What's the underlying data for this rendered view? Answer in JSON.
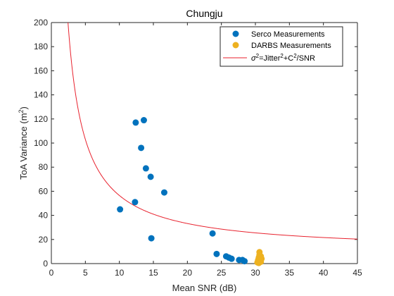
{
  "chart_data": {
    "type": "scatter",
    "title": "Chungju",
    "xlabel": "Mean SNR (dB)",
    "ylabel": "ToA Variance (m²)",
    "xlim": [
      0,
      45
    ],
    "ylim": [
      0,
      200
    ],
    "xticks": [
      0,
      5,
      10,
      15,
      20,
      25,
      30,
      35,
      40,
      45
    ],
    "yticks": [
      0,
      20,
      40,
      60,
      80,
      100,
      120,
      140,
      160,
      180,
      200
    ],
    "grid": false,
    "legend_position": "top-right",
    "series": [
      {
        "name": "Serco Measurements",
        "kind": "scatter",
        "color": "#0072BD",
        "points": [
          [
            10.1,
            45
          ],
          [
            12.3,
            51
          ],
          [
            12.4,
            117
          ],
          [
            13.2,
            96
          ],
          [
            13.6,
            119
          ],
          [
            13.9,
            79
          ],
          [
            14.6,
            72
          ],
          [
            14.7,
            21
          ],
          [
            16.6,
            59
          ],
          [
            23.7,
            25
          ],
          [
            24.3,
            8
          ],
          [
            25.7,
            6
          ],
          [
            26.1,
            5
          ],
          [
            26.5,
            4
          ],
          [
            27.6,
            3
          ],
          [
            28.1,
            3
          ],
          [
            28.4,
            2
          ]
        ]
      },
      {
        "name": "DARBS Measurements",
        "kind": "scatter",
        "color": "#EDB120",
        "points": [
          [
            30.3,
            1
          ],
          [
            30.4,
            3
          ],
          [
            30.5,
            5
          ],
          [
            30.6,
            7
          ],
          [
            30.6,
            9.5
          ],
          [
            30.7,
            2
          ],
          [
            30.8,
            6
          ],
          [
            30.9,
            4
          ],
          [
            30.5,
            0.5
          ],
          [
            30.8,
            1.5
          ]
        ]
      },
      {
        "name": "σ²=Jitter²+C²/SNR",
        "kind": "line",
        "color": "#E8222E",
        "model": {
          "jitter_sq": 10,
          "c_sq": 465
        }
      }
    ],
    "legend": {
      "entries": [
        {
          "label": "Serco Measurements"
        },
        {
          "label": "DARBS Measurements"
        },
        {
          "label_parts": [
            "σ",
            "2",
            "=Jitter",
            "2",
            "+C",
            "2",
            "/SNR"
          ]
        }
      ]
    }
  }
}
